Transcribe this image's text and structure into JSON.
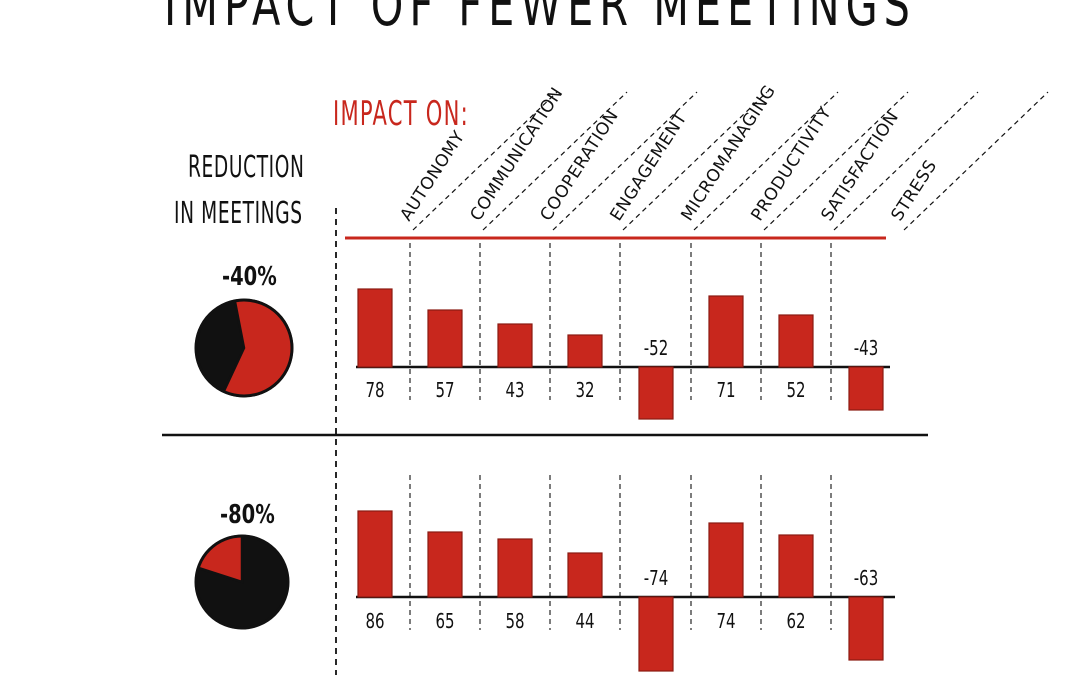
{
  "title": "IMPACT OF FEWER MEETINGS",
  "impact_on_label": "IMPACT ON:",
  "row_header": {
    "line1": "REDUCTION",
    "line2": "IN MEETINGS"
  },
  "colors": {
    "accent": "#c8271d",
    "ink": "#111111"
  },
  "chart_data": [
    {
      "type": "bar",
      "reduction": "-40%",
      "reduction_fraction": 0.4,
      "categories": [
        "AUTONOMY",
        "COMMUNICATION",
        "COOPERATION",
        "ENGAGEMENT",
        "MICROMANAGING",
        "PRODUCTIVITY",
        "SATISFACTION",
        "STRESS"
      ],
      "values": [
        78,
        57,
        43,
        32,
        -52,
        71,
        52,
        -43
      ],
      "labels": [
        "78",
        "57",
        "43",
        "32",
        "-52",
        "71",
        "52",
        "-43"
      ]
    },
    {
      "type": "bar",
      "reduction": "-80%",
      "reduction_fraction": 0.8,
      "categories": [
        "AUTONOMY",
        "COMMUNICATION",
        "COOPERATION",
        "ENGAGEMENT",
        "MICROMANAGING",
        "PRODUCTIVITY",
        "SATISFACTION",
        "STRESS"
      ],
      "values": [
        86,
        65,
        58,
        44,
        -74,
        74,
        62,
        -63
      ],
      "labels": [
        "86",
        "65",
        "58",
        "44",
        "-74",
        "74",
        "62",
        "-63"
      ]
    }
  ]
}
